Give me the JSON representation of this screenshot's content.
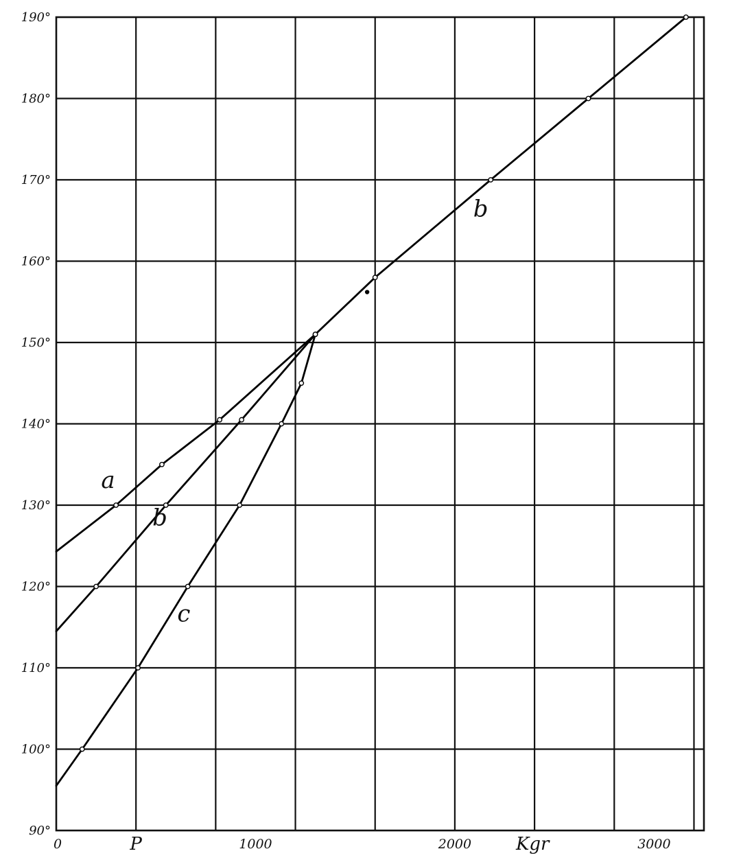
{
  "chart_data": {
    "type": "line",
    "xlabel": "Kgr",
    "x_marker": "P",
    "xlim": [
      0,
      3250
    ],
    "ylim": [
      90,
      190
    ],
    "grid": true,
    "x_ticks": [
      {
        "value": 0,
        "label": "0"
      },
      {
        "value": 1000,
        "label": "1000"
      },
      {
        "value": 2000,
        "label": "2000"
      },
      {
        "value": 3000,
        "label": "3000"
      }
    ],
    "y_ticks": [
      {
        "value": 90,
        "label": "90°"
      },
      {
        "value": 100,
        "label": "100°"
      },
      {
        "value": 110,
        "label": "110°"
      },
      {
        "value": 120,
        "label": "120°"
      },
      {
        "value": 130,
        "label": "130°"
      },
      {
        "value": 140,
        "label": "140°"
      },
      {
        "value": 150,
        "label": "150°"
      },
      {
        "value": 160,
        "label": "160°"
      },
      {
        "value": 170,
        "label": "170°"
      },
      {
        "value": 180,
        "label": "180°"
      },
      {
        "value": 190,
        "label": "190°"
      }
    ],
    "series": [
      {
        "name": "a",
        "points": [
          [
            0,
            124.3
          ],
          [
            300,
            130
          ],
          [
            530,
            135
          ],
          [
            820,
            140.5
          ],
          [
            1300,
            151
          ]
        ]
      },
      {
        "name": "b",
        "points": [
          [
            0,
            114.5
          ],
          [
            200,
            120
          ],
          [
            550,
            130
          ],
          [
            930,
            140.5
          ],
          [
            1300,
            151
          ],
          [
            1600,
            158
          ],
          [
            2180,
            170
          ],
          [
            2670,
            180
          ],
          [
            3160,
            190
          ]
        ]
      },
      {
        "name": "c",
        "points": [
          [
            0,
            95.5
          ],
          [
            130,
            100
          ],
          [
            410,
            110
          ],
          [
            660,
            120
          ],
          [
            920,
            130
          ],
          [
            1130,
            140
          ],
          [
            1230,
            145
          ],
          [
            1300,
            151
          ]
        ]
      }
    ],
    "loose_points": [
      [
        1560,
        156.2
      ]
    ],
    "curve_labels": [
      {
        "text": "a",
        "x": 260,
        "y": 132.1
      },
      {
        "text": "b",
        "x": 520,
        "y": 127.5
      },
      {
        "text": "c",
        "x": 640,
        "y": 115.7
      },
      {
        "text": "b",
        "x": 2130,
        "y": 165.5
      }
    ]
  }
}
